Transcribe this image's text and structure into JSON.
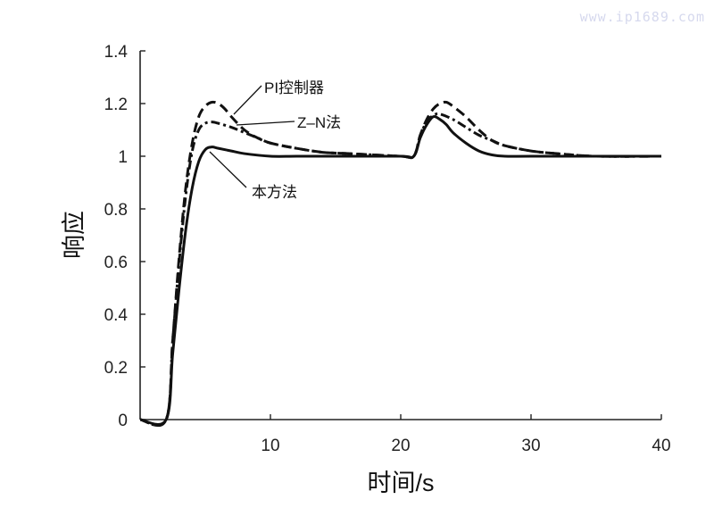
{
  "watermark": "www.ip1689.com",
  "chart_data": {
    "type": "line",
    "title": "",
    "xlabel": "时间/s",
    "ylabel": "响应",
    "xlim": [
      0,
      40
    ],
    "ylim": [
      0,
      1.4
    ],
    "xticks": [
      10,
      20,
      30,
      40
    ],
    "xtick_labels": [
      "10",
      "20",
      "30",
      "40"
    ],
    "yticks": [
      0,
      0.2,
      0.4,
      0.6,
      0.8,
      1,
      1.2,
      1.4
    ],
    "ytick_labels": [
      "0",
      "0.2",
      "0.4",
      "0.6",
      "0.8",
      "1",
      "1.2",
      "1.4"
    ],
    "grid": false,
    "legend": "inline annotations with leader lines",
    "series": [
      {
        "name": "本方法",
        "style": "solid",
        "x": [
          0,
          2,
          2.5,
          3,
          3.5,
          4,
          4.5,
          5,
          5.5,
          6,
          7,
          8,
          10,
          12,
          15,
          20,
          21,
          21.5,
          22,
          22.5,
          23,
          23.5,
          24,
          25,
          26,
          27,
          28,
          30,
          35,
          40
        ],
        "y": [
          0,
          0,
          0.25,
          0.5,
          0.72,
          0.88,
          0.98,
          1.025,
          1.035,
          1.03,
          1.02,
          1.01,
          1.0,
          1.0,
          1.0,
          1.0,
          1.0,
          1.07,
          1.12,
          1.15,
          1.14,
          1.12,
          1.09,
          1.05,
          1.02,
          1.005,
          1.0,
          1.0,
          1.0,
          1.0
        ]
      },
      {
        "name": "Z-N法",
        "style": "dashdot",
        "x": [
          0,
          2,
          2.5,
          3,
          3.5,
          4,
          4.5,
          5,
          5.5,
          6,
          7,
          8,
          9,
          10,
          12,
          14,
          16,
          20,
          21,
          21.5,
          22,
          22.5,
          23,
          24,
          25,
          26,
          27,
          28,
          30,
          32,
          35,
          40
        ],
        "y": [
          0,
          0,
          0.3,
          0.6,
          0.85,
          1.02,
          1.1,
          1.125,
          1.13,
          1.125,
          1.11,
          1.09,
          1.07,
          1.05,
          1.03,
          1.015,
          1.01,
          1.0,
          1.0,
          1.08,
          1.13,
          1.155,
          1.16,
          1.14,
          1.11,
          1.08,
          1.06,
          1.04,
          1.02,
          1.01,
          1.0,
          1.0
        ]
      },
      {
        "name": "PI控制器",
        "style": "dashed",
        "x": [
          0,
          2,
          2.5,
          3,
          3.5,
          4,
          4.5,
          5,
          5.5,
          6,
          6.5,
          7,
          8,
          9,
          10,
          12,
          14,
          16,
          20,
          21,
          21.5,
          22,
          22.5,
          23,
          23.5,
          24,
          25,
          26,
          27,
          28,
          30,
          32,
          35,
          40
        ],
        "y": [
          0,
          0,
          0.3,
          0.62,
          0.88,
          1.05,
          1.15,
          1.19,
          1.205,
          1.2,
          1.18,
          1.15,
          1.1,
          1.07,
          1.05,
          1.03,
          1.015,
          1.01,
          1.0,
          1.0,
          1.08,
          1.14,
          1.18,
          1.2,
          1.205,
          1.19,
          1.15,
          1.1,
          1.06,
          1.04,
          1.02,
          1.01,
          1.0,
          1.0
        ]
      }
    ],
    "annotations": [
      {
        "text": "PI控制器",
        "series": "PI控制器"
      },
      {
        "text": "Z–N法",
        "series": "Z-N法"
      },
      {
        "text": "本方法",
        "series": "本方法"
      }
    ]
  }
}
